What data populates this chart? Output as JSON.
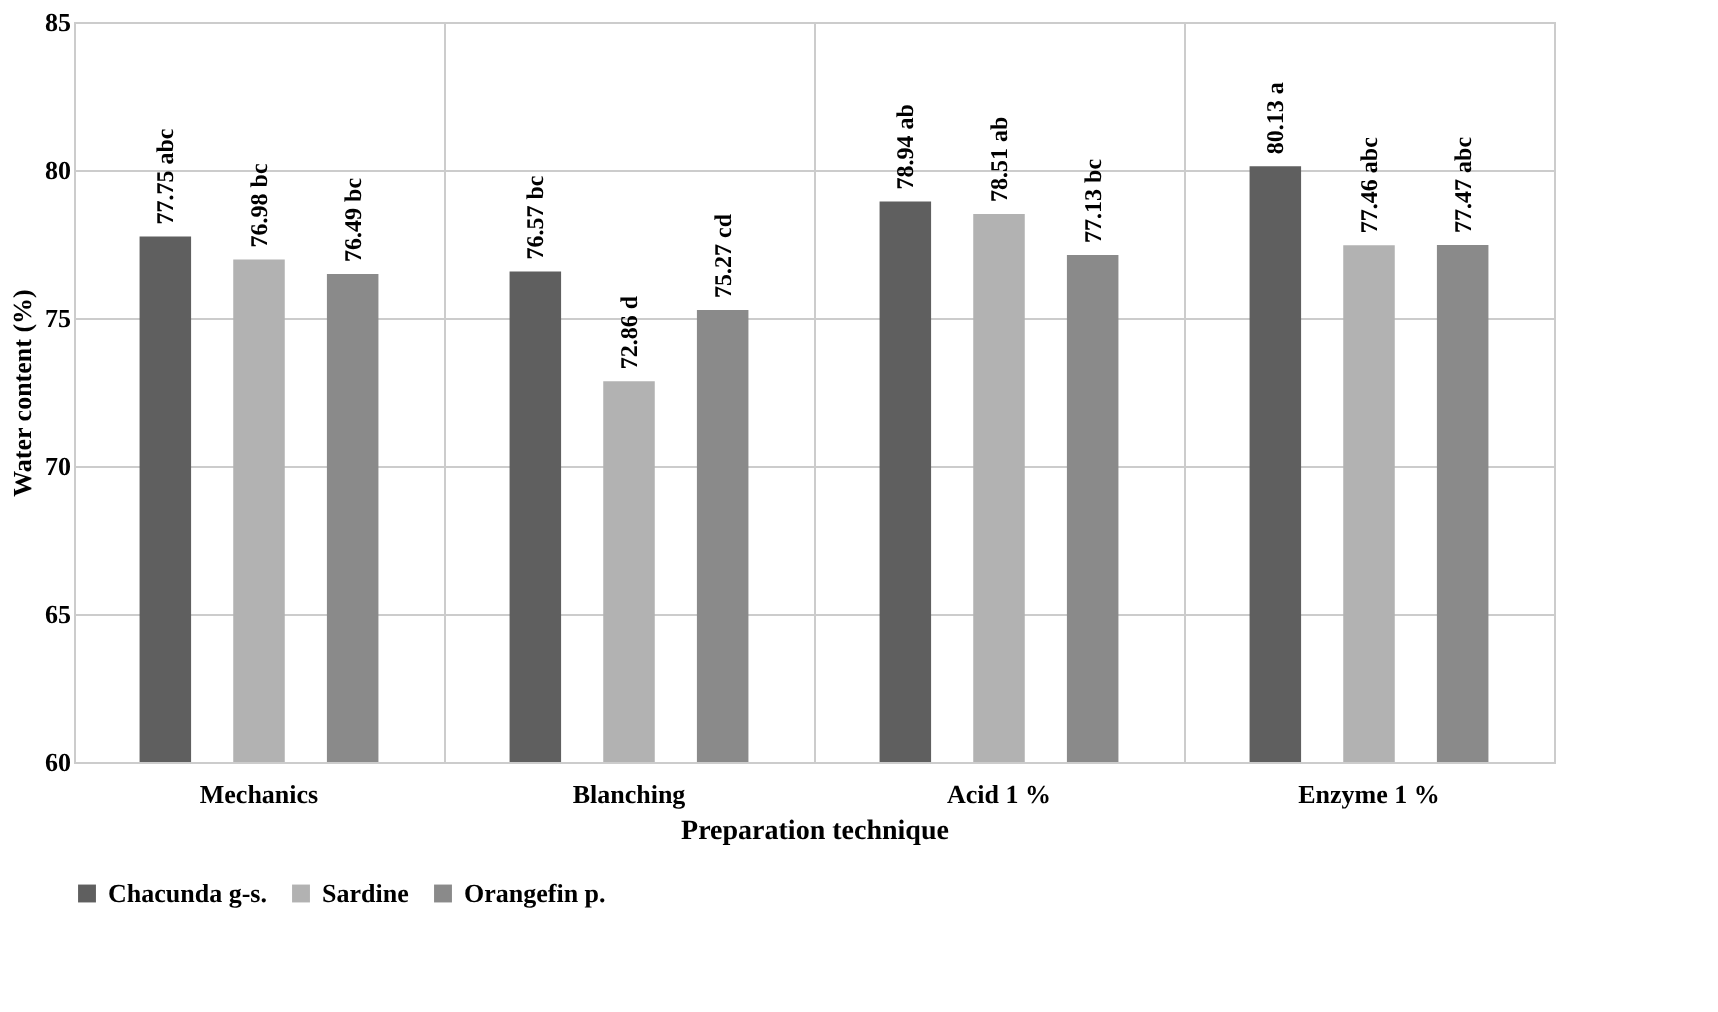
{
  "chart_data": {
    "type": "bar",
    "xlabel": "Preparation technique",
    "ylabel": "Water content (%)",
    "categories": [
      "Mechanics",
      "Blanching",
      "Acid 1 %",
      "Enzyme 1 %"
    ],
    "series": [
      {
        "name": "Chacunda g-s.",
        "color": "#5f5f5f",
        "values": [
          77.75,
          76.57,
          78.94,
          80.13
        ],
        "value_labels": [
          "77.75 abc",
          "76.57 bc",
          "78.94 ab",
          "80.13 a"
        ]
      },
      {
        "name": "Sardine",
        "color": "#b2b2b2",
        "values": [
          76.98,
          72.86,
          78.51,
          77.46
        ],
        "value_labels": [
          "76.98 bc",
          "72.86 d",
          "78.51 ab",
          "77.46 abc"
        ]
      },
      {
        "name": "Orangefin p.",
        "color": "#8a8a8a",
        "values": [
          76.49,
          75.27,
          77.13,
          77.47
        ],
        "value_labels": [
          "76.49 bc",
          "75.27 cd",
          "77.13 bc",
          "77.47 abc"
        ]
      }
    ],
    "ylim": [
      60,
      85
    ],
    "yticks": [
      60,
      65,
      70,
      75,
      80,
      85
    ],
    "grid": true,
    "legend": "bottom"
  }
}
